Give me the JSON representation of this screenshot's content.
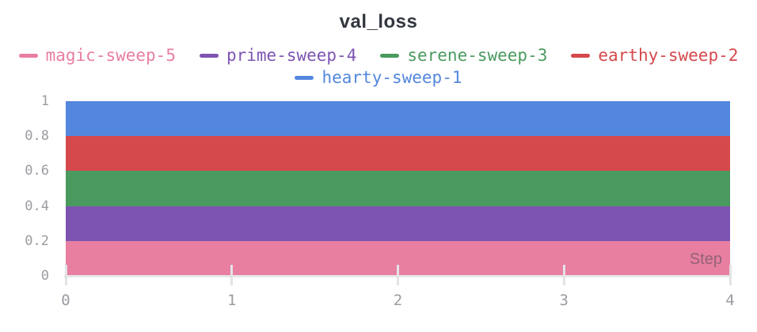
{
  "title": "val_loss",
  "chart_data": {
    "type": "area",
    "title": "val_loss",
    "xlabel": "Step",
    "ylabel": "",
    "xlim": [
      0,
      4
    ],
    "ylim": [
      0,
      1
    ],
    "x_ticks": [
      0,
      1,
      2,
      3,
      4
    ],
    "y_ticks": [
      0,
      0.2,
      0.4,
      0.6,
      0.8,
      1
    ],
    "grid": false,
    "legend_position": "top",
    "x": [
      0,
      1,
      2,
      3,
      4
    ],
    "series": [
      {
        "name": "magic-sweep-5",
        "color": "#E87FA0",
        "band": [
          0.0,
          0.2
        ],
        "values": [
          0.1,
          0.1,
          0.1,
          0.1,
          0.1
        ]
      },
      {
        "name": "prime-sweep-4",
        "color": "#7D54B2",
        "band": [
          0.2,
          0.4
        ],
        "values": [
          0.3,
          0.3,
          0.3,
          0.3,
          0.3
        ]
      },
      {
        "name": "serene-sweep-3",
        "color": "#4A9A5F",
        "band": [
          0.4,
          0.6
        ],
        "values": [
          0.5,
          0.5,
          0.5,
          0.5,
          0.5
        ]
      },
      {
        "name": "earthy-sweep-2",
        "color": "#D5494D",
        "band": [
          0.6,
          0.8
        ],
        "values": [
          0.7,
          0.7,
          0.7,
          0.7,
          0.7
        ]
      },
      {
        "name": "hearty-sweep-1",
        "color": "#5387DD",
        "band": [
          0.8,
          1.0
        ],
        "values": [
          0.9,
          0.9,
          0.9,
          0.9,
          0.9
        ]
      }
    ],
    "y_tick_labels": [
      "0",
      "0.2",
      "0.4",
      "0.6",
      "0.8",
      "1"
    ],
    "x_tick_labels": [
      "0",
      "1",
      "2",
      "3",
      "4"
    ]
  }
}
